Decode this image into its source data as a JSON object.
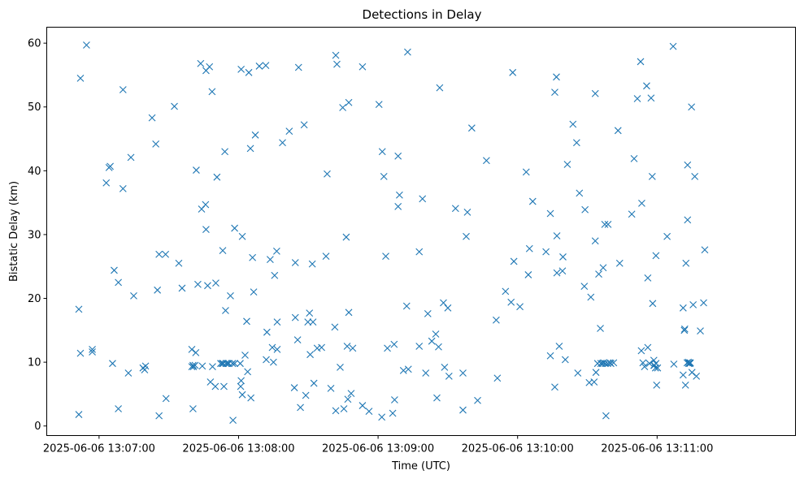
{
  "chart_data": {
    "type": "scatter",
    "title": "Detections in Delay",
    "xlabel": "Time (UTC)",
    "ylabel": "Bistatic Delay (km)",
    "marker": "x",
    "color": "#1f77b4",
    "grid": false,
    "x_unit": "seconds after 2025-06-06 13:06:40 UTC",
    "xlim": [
      0,
      322
    ],
    "ylim": [
      -1.5,
      62.5
    ],
    "x_ticks": [
      {
        "value": 22.5,
        "label": "2025-06-06 13:07:00"
      },
      {
        "value": 82.5,
        "label": "2025-06-06 13:08:00"
      },
      {
        "value": 142.5,
        "label": "2025-06-06 13:09:00"
      },
      {
        "value": 202.5,
        "label": "2025-06-06 13:10:00"
      },
      {
        "value": 262.5,
        "label": "2025-06-06 13:11:00"
      }
    ],
    "y_ticks": [
      0,
      10,
      20,
      30,
      40,
      50,
      60
    ],
    "points": [
      [
        13.8,
        1.8
      ],
      [
        13.8,
        18.3
      ],
      [
        14.5,
        11.4
      ],
      [
        14.5,
        54.5
      ],
      [
        17.1,
        59.7
      ],
      [
        19.6,
        11.6
      ],
      [
        19.6,
        12.0
      ],
      [
        25.6,
        38.1
      ],
      [
        26.8,
        40.5
      ],
      [
        27.3,
        40.7
      ],
      [
        28.3,
        9.8
      ],
      [
        29.0,
        24.4
      ],
      [
        30.8,
        2.7
      ],
      [
        30.8,
        22.5
      ],
      [
        32.8,
        37.2
      ],
      [
        32.8,
        52.7
      ],
      [
        35.1,
        8.3
      ],
      [
        36.2,
        42.1
      ],
      [
        37.4,
        20.4
      ],
      [
        41.4,
        9.1
      ],
      [
        42.1,
        8.8
      ],
      [
        42.5,
        9.4
      ],
      [
        45.3,
        48.3
      ],
      [
        46.9,
        44.2
      ],
      [
        47.6,
        21.3
      ],
      [
        48.3,
        1.6
      ],
      [
        48.3,
        26.9
      ],
      [
        51.1,
        26.9
      ],
      [
        51.3,
        4.3
      ],
      [
        54.9,
        50.1
      ],
      [
        56.8,
        25.5
      ],
      [
        58.2,
        21.6
      ],
      [
        62.4,
        9.3
      ],
      [
        62.4,
        12.0
      ],
      [
        62.9,
        2.7
      ],
      [
        62.9,
        9.5
      ],
      [
        63.1,
        9.3
      ],
      [
        63.8,
        9.5
      ],
      [
        64.1,
        11.5
      ],
      [
        64.3,
        40.1
      ],
      [
        65.0,
        22.2
      ],
      [
        66.2,
        56.8
      ],
      [
        66.6,
        34.0
      ],
      [
        66.9,
        9.4
      ],
      [
        68.3,
        34.7
      ],
      [
        68.5,
        30.8
      ],
      [
        68.5,
        55.7
      ],
      [
        69.2,
        22.0
      ],
      [
        70.0,
        56.3
      ],
      [
        70.4,
        6.9
      ],
      [
        71.1,
        52.4
      ],
      [
        71.3,
        9.3
      ],
      [
        72.5,
        6.2
      ],
      [
        72.7,
        22.4
      ],
      [
        73.2,
        39.0
      ],
      [
        74.8,
        9.8
      ],
      [
        75.5,
        9.8
      ],
      [
        75.7,
        27.5
      ],
      [
        75.9,
        9.8
      ],
      [
        76.2,
        6.2
      ],
      [
        76.6,
        43.0
      ],
      [
        76.9,
        18.1
      ],
      [
        77.1,
        9.8
      ],
      [
        77.8,
        9.8
      ],
      [
        78.3,
        9.8
      ],
      [
        79.0,
        20.4
      ],
      [
        79.9,
        9.8
      ],
      [
        80.1,
        0.9
      ],
      [
        80.8,
        9.8
      ],
      [
        80.8,
        31.0
      ],
      [
        83.2,
        9.8
      ],
      [
        83.4,
        6.2
      ],
      [
        83.6,
        7.1
      ],
      [
        83.6,
        55.9
      ],
      [
        84.1,
        4.9
      ],
      [
        84.1,
        29.7
      ],
      [
        85.3,
        11.1
      ],
      [
        86.0,
        16.4
      ],
      [
        86.4,
        8.5
      ],
      [
        86.9,
        55.4
      ],
      [
        87.6,
        43.5
      ],
      [
        87.8,
        4.4
      ],
      [
        88.5,
        26.4
      ],
      [
        89.0,
        21.0
      ],
      [
        89.7,
        45.6
      ],
      [
        91.4,
        56.4
      ],
      [
        94.2,
        56.5
      ],
      [
        94.4,
        10.4
      ],
      [
        94.7,
        14.7
      ],
      [
        96.1,
        26.1
      ],
      [
        97.0,
        12.3
      ],
      [
        97.5,
        10.0
      ],
      [
        98.0,
        23.6
      ],
      [
        98.9,
        27.4
      ],
      [
        99.1,
        16.3
      ],
      [
        99.1,
        12.0
      ],
      [
        101.4,
        44.4
      ],
      [
        104.3,
        46.2
      ],
      [
        106.5,
        6.0
      ],
      [
        106.9,
        25.6
      ],
      [
        106.9,
        17.0
      ],
      [
        107.9,
        13.5
      ],
      [
        108.3,
        56.2
      ],
      [
        109.1,
        2.9
      ],
      [
        110.7,
        47.2
      ],
      [
        111.4,
        4.8
      ],
      [
        112.3,
        16.3
      ],
      [
        113.0,
        17.7
      ],
      [
        113.3,
        11.2
      ],
      [
        114.2,
        25.4
      ],
      [
        114.5,
        16.3
      ],
      [
        114.9,
        6.7
      ],
      [
        116.3,
        12.2
      ],
      [
        118.2,
        12.3
      ],
      [
        120.1,
        26.6
      ],
      [
        120.6,
        39.5
      ],
      [
        122.2,
        5.9
      ],
      [
        123.9,
        15.5
      ],
      [
        124.3,
        2.4
      ],
      [
        124.3,
        58.1
      ],
      [
        124.8,
        56.7
      ],
      [
        126.2,
        9.2
      ],
      [
        127.3,
        49.9
      ],
      [
        127.8,
        2.7
      ],
      [
        128.8,
        29.6
      ],
      [
        129.2,
        12.5
      ],
      [
        129.5,
        4.2
      ],
      [
        129.9,
        17.8
      ],
      [
        129.9,
        50.7
      ],
      [
        130.9,
        5.1
      ],
      [
        131.6,
        12.2
      ],
      [
        135.8,
        56.3
      ],
      [
        135.8,
        3.2
      ],
      [
        138.6,
        2.3
      ],
      [
        142.9,
        50.4
      ],
      [
        144.1,
        1.4
      ],
      [
        144.3,
        43.0
      ],
      [
        145.0,
        39.1
      ],
      [
        145.8,
        26.6
      ],
      [
        146.5,
        12.2
      ],
      [
        148.8,
        2.0
      ],
      [
        149.4,
        12.8
      ],
      [
        149.6,
        4.1
      ],
      [
        151.1,
        42.3
      ],
      [
        151.1,
        34.4
      ],
      [
        151.7,
        36.2
      ],
      [
        153.4,
        8.7
      ],
      [
        154.8,
        18.8
      ],
      [
        155.2,
        58.6
      ],
      [
        155.5,
        8.9
      ],
      [
        160.2,
        12.5
      ],
      [
        160.2,
        27.3
      ],
      [
        161.6,
        35.6
      ],
      [
        163.0,
        8.3
      ],
      [
        163.9,
        17.6
      ],
      [
        165.6,
        13.3
      ],
      [
        167.3,
        14.4
      ],
      [
        167.8,
        4.4
      ],
      [
        168.5,
        12.4
      ],
      [
        169.0,
        53.0
      ],
      [
        170.6,
        19.3
      ],
      [
        171.1,
        9.2
      ],
      [
        172.5,
        18.5
      ],
      [
        173.0,
        7.8
      ],
      [
        175.8,
        34.1
      ],
      [
        179.0,
        8.3
      ],
      [
        179.0,
        2.5
      ],
      [
        180.4,
        29.7
      ],
      [
        180.9,
        33.5
      ],
      [
        182.8,
        46.7
      ],
      [
        185.3,
        4.0
      ],
      [
        189.1,
        41.6
      ],
      [
        193.3,
        16.6
      ],
      [
        193.8,
        7.5
      ],
      [
        197.3,
        21.1
      ],
      [
        199.7,
        19.4
      ],
      [
        200.4,
        55.4
      ],
      [
        200.9,
        25.8
      ],
      [
        203.5,
        18.7
      ],
      [
        206.2,
        39.8
      ],
      [
        207.1,
        23.7
      ],
      [
        207.6,
        27.8
      ],
      [
        209.0,
        35.2
      ],
      [
        214.7,
        27.3
      ],
      [
        216.6,
        33.3
      ],
      [
        216.6,
        11.0
      ],
      [
        218.5,
        6.1
      ],
      [
        218.5,
        52.3
      ],
      [
        219.2,
        54.7
      ],
      [
        219.4,
        29.8
      ],
      [
        219.4,
        24.0
      ],
      [
        220.4,
        12.5
      ],
      [
        221.8,
        24.3
      ],
      [
        222.0,
        26.5
      ],
      [
        223.0,
        10.4
      ],
      [
        223.9,
        41.0
      ],
      [
        226.3,
        47.3
      ],
      [
        227.9,
        44.4
      ],
      [
        228.4,
        8.3
      ],
      [
        229.1,
        36.5
      ],
      [
        231.2,
        21.9
      ],
      [
        231.5,
        33.9
      ],
      [
        233.3,
        6.8
      ],
      [
        234.0,
        20.2
      ],
      [
        235.4,
        6.9
      ],
      [
        235.9,
        29.0
      ],
      [
        235.9,
        52.1
      ],
      [
        236.2,
        8.4
      ],
      [
        236.9,
        9.8
      ],
      [
        237.4,
        23.8
      ],
      [
        238.1,
        15.3
      ],
      [
        238.3,
        9.8
      ],
      [
        239.0,
        9.8
      ],
      [
        239.3,
        24.8
      ],
      [
        239.5,
        9.9
      ],
      [
        240.0,
        31.6
      ],
      [
        240.2,
        9.8
      ],
      [
        240.5,
        1.6
      ],
      [
        241.2,
        9.8
      ],
      [
        241.4,
        31.6
      ],
      [
        242.2,
        9.9
      ],
      [
        242.6,
        9.8
      ],
      [
        243.8,
        9.9
      ],
      [
        245.7,
        46.3
      ],
      [
        246.4,
        25.5
      ],
      [
        251.6,
        33.2
      ],
      [
        252.6,
        41.9
      ],
      [
        254.0,
        51.3
      ],
      [
        255.4,
        57.1
      ],
      [
        255.7,
        11.8
      ],
      [
        255.9,
        34.9
      ],
      [
        256.4,
        9.9
      ],
      [
        257.1,
        9.3
      ],
      [
        258.0,
        53.3
      ],
      [
        258.5,
        12.3
      ],
      [
        258.5,
        23.2
      ],
      [
        259.2,
        9.8
      ],
      [
        259.9,
        51.4
      ],
      [
        260.4,
        39.1
      ],
      [
        260.6,
        19.2
      ],
      [
        261.1,
        9.5
      ],
      [
        261.1,
        10.3
      ],
      [
        261.3,
        9.5
      ],
      [
        261.8,
        9.1
      ],
      [
        262.0,
        26.7
      ],
      [
        262.0,
        9.8
      ],
      [
        262.3,
        6.4
      ],
      [
        262.7,
        9.1
      ],
      [
        266.8,
        29.7
      ],
      [
        269.4,
        59.5
      ],
      [
        269.7,
        9.7
      ],
      [
        273.7,
        18.5
      ],
      [
        273.7,
        8.0
      ],
      [
        274.2,
        15.0
      ],
      [
        274.4,
        15.2
      ],
      [
        274.7,
        6.4
      ],
      [
        274.9,
        25.5
      ],
      [
        275.4,
        9.9
      ],
      [
        275.6,
        32.3
      ],
      [
        275.6,
        40.9
      ],
      [
        275.9,
        10.0
      ],
      [
        276.1,
        9.8
      ],
      [
        276.4,
        9.9
      ],
      [
        276.6,
        9.8
      ],
      [
        276.8,
        9.9
      ],
      [
        277.3,
        50.0
      ],
      [
        277.5,
        8.4
      ],
      [
        278.0,
        19.0
      ],
      [
        278.7,
        39.1
      ],
      [
        279.4,
        7.8
      ],
      [
        281.1,
        14.9
      ],
      [
        282.5,
        19.3
      ],
      [
        283.0,
        27.6
      ]
    ]
  }
}
